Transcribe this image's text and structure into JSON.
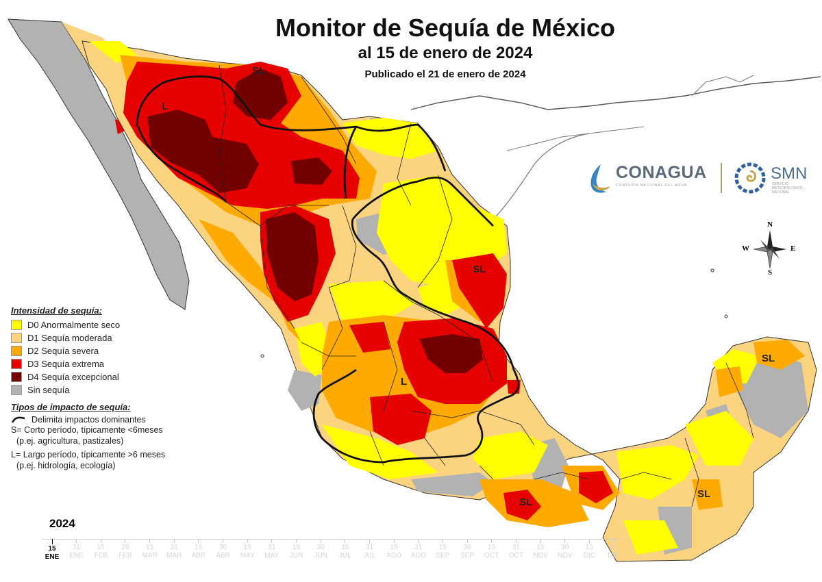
{
  "title": "Monitor de Sequía de México",
  "subtitle": "al 15 de enero de 2024",
  "published": "Publicado el 21 de enero de 2024",
  "legend": {
    "intensity_heading": "Intensidad de sequía:",
    "categories": [
      {
        "code": "D0",
        "label": "D0 Anormalmente seco",
        "color": "#ffff00"
      },
      {
        "code": "D1",
        "label": "D1 Sequía moderada",
        "color": "#fcd37f"
      },
      {
        "code": "D2",
        "label": "D2 Sequía severa",
        "color": "#ffaa00"
      },
      {
        "code": "D3",
        "label": "D3 Sequía extrema",
        "color": "#e60000"
      },
      {
        "code": "D4",
        "label": "D4 Sequía excepcional",
        "color": "#730000"
      },
      {
        "code": "none",
        "label": "Sin sequía",
        "color": "#b2b2b2"
      }
    ],
    "impact_heading": "Tipos de impacto de sequía:",
    "impact_line_label": "Delimita impactos dominantes",
    "short_term": "S= Corto período, típicamente <6meses",
    "short_term_examples": "(p.ej. agricultura, pastizales)",
    "long_term": "L= Largo período, típicamente >6 meses",
    "long_term_examples": "(p.ej. hidrología, ecología)"
  },
  "map_labels": {
    "sonora_north": "SL",
    "chihuahua_west": "L",
    "tamaulipas": "SL",
    "central": "L",
    "guerrero": "SL",
    "yucatan_north": "SL",
    "quintana_roo_south": "SL"
  },
  "logos": {
    "conagua": "CONAGUA",
    "conagua_sub": "COMISIÓN NACIONAL DEL AGUA",
    "smn": "SMN",
    "smn_sub": "SERVICIO METEOROLÓGICO NACIONAL"
  },
  "compass": {
    "n": "N",
    "s": "S",
    "e": "E",
    "w": "W"
  },
  "timeline": {
    "year": "2024",
    "ticks": [
      {
        "d": "15",
        "m": "ENE"
      },
      {
        "d": "31",
        "m": "ENE"
      },
      {
        "d": "15",
        "m": "FEB"
      },
      {
        "d": "28",
        "m": "FEB"
      },
      {
        "d": "15",
        "m": "MAR"
      },
      {
        "d": "31",
        "m": "MAR"
      },
      {
        "d": "15",
        "m": "ABR"
      },
      {
        "d": "30",
        "m": "ABR"
      },
      {
        "d": "15",
        "m": "MAY"
      },
      {
        "d": "31",
        "m": "MAY"
      },
      {
        "d": "15",
        "m": "JUN"
      },
      {
        "d": "30",
        "m": "JUN"
      },
      {
        "d": "15",
        "m": "JUL"
      },
      {
        "d": "31",
        "m": "JUL"
      },
      {
        "d": "15",
        "m": "AGO"
      },
      {
        "d": "31",
        "m": "AGO"
      },
      {
        "d": "15",
        "m": "SEP"
      },
      {
        "d": "30",
        "m": "SEP"
      },
      {
        "d": "15",
        "m": "OCT"
      },
      {
        "d": "31",
        "m": "OCT"
      },
      {
        "d": "15",
        "m": "NOV"
      },
      {
        "d": "30",
        "m": "NOV"
      },
      {
        "d": "15",
        "m": "DIC"
      },
      {
        "d": "31",
        "m": "DIC"
      }
    ],
    "active_index": 0
  }
}
